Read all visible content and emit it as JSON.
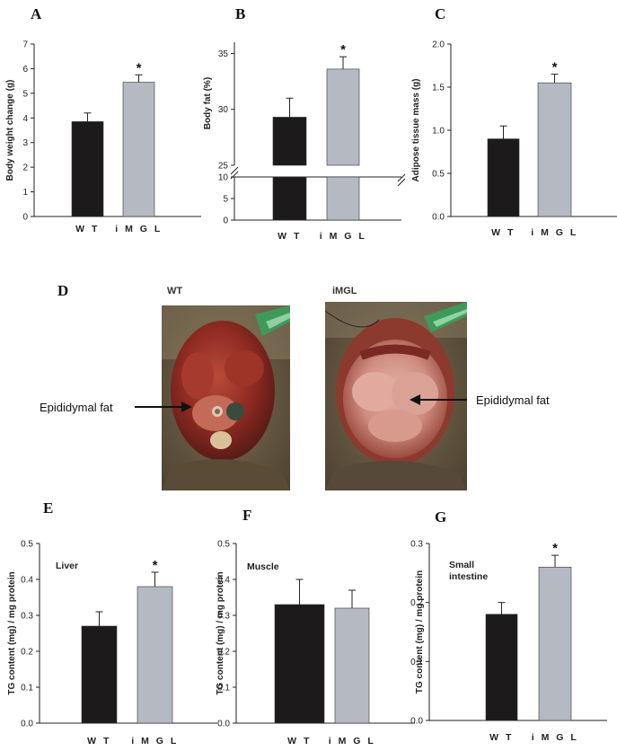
{
  "panels": {
    "A": "A",
    "B": "B",
    "C": "C",
    "D": "D",
    "E": "E",
    "F": "F",
    "G": "G"
  },
  "photos": {
    "wt_title": "WT",
    "imgl_title": "iMGL",
    "left_callout": "Epididymal fat",
    "right_callout": "Epididymal fat"
  },
  "colors": {
    "wt": "#1c1a1b",
    "imgl": "#b5b9c2"
  },
  "chart_data": [
    {
      "panel": "A",
      "type": "bar",
      "categories": [
        "W T",
        "i M G L"
      ],
      "values": [
        3.85,
        5.45
      ],
      "errors": [
        0.35,
        0.3
      ],
      "significance": [
        "",
        "*"
      ],
      "ylabel": "Body weight change (g)",
      "ylim": [
        0,
        7
      ],
      "yticks": [
        0,
        1,
        2,
        3,
        4,
        5,
        6,
        7
      ],
      "ytick_labels": [
        "0",
        "1",
        "2",
        "3",
        "4",
        "5",
        "6",
        "7"
      ]
    },
    {
      "panel": "B",
      "type": "bar",
      "broken_axis": true,
      "categories": [
        "W T",
        "i M G L"
      ],
      "values": [
        29.3,
        33.6
      ],
      "errors": [
        1.7,
        1.1
      ],
      "significance": [
        "",
        "*"
      ],
      "ylabel": "Body fat (%)",
      "ylim_lower": [
        0,
        10
      ],
      "ylim_upper": [
        25,
        36
      ],
      "yticks_lower": [
        0,
        5,
        10
      ],
      "ytick_labels_lower": [
        "0",
        "5",
        "10"
      ],
      "yticks_upper": [
        25,
        30,
        35
      ],
      "ytick_labels_upper": [
        "25",
        "30",
        "35"
      ]
    },
    {
      "panel": "C",
      "type": "bar",
      "categories": [
        "W T",
        "i M G L"
      ],
      "values": [
        0.9,
        1.55
      ],
      "errors": [
        0.15,
        0.1
      ],
      "significance": [
        "",
        "*"
      ],
      "ylabel": "Adipose tissue mass (g)",
      "ylim": [
        0,
        2.0
      ],
      "yticks": [
        0,
        0.5,
        1.0,
        1.5,
        2.0
      ],
      "ytick_labels": [
        "0.0",
        "0.5",
        "1.0",
        "1.5",
        "2.0"
      ]
    },
    {
      "panel": "E",
      "type": "bar",
      "annotation": "Liver",
      "categories": [
        "W T",
        "i M G L"
      ],
      "values": [
        0.27,
        0.38
      ],
      "errors": [
        0.04,
        0.04
      ],
      "significance": [
        "",
        "*"
      ],
      "ylabel": "TG  content (mg) / mg protein",
      "ylim": [
        0,
        0.5
      ],
      "yticks": [
        0,
        0.1,
        0.2,
        0.3,
        0.4,
        0.5
      ],
      "ytick_labels": [
        "0.0",
        "0.1",
        "0.2",
        "0.3",
        "0.4",
        "0.5"
      ]
    },
    {
      "panel": "F",
      "type": "bar",
      "annotation": "Muscle",
      "categories": [
        "W T",
        "i M G L"
      ],
      "values": [
        0.33,
        0.32
      ],
      "errors": [
        0.07,
        0.05
      ],
      "significance": [
        "",
        ""
      ],
      "ylabel": "TG content (mg) / mg protein",
      "ylim": [
        0,
        0.5
      ],
      "yticks": [
        0,
        0.1,
        0.2,
        0.3,
        0.4,
        0.5
      ],
      "ytick_labels": [
        "0.0",
        "0.1",
        "0.2",
        "0.3",
        "0.4",
        "0.5"
      ]
    },
    {
      "panel": "G",
      "type": "bar",
      "annotation": "Small intestine",
      "categories": [
        "W T",
        "i M G L"
      ],
      "values": [
        0.18,
        0.26
      ],
      "errors": [
        0.02,
        0.02
      ],
      "significance": [
        "",
        "*"
      ],
      "ylabel": "TG content (mg) / mg protein",
      "ylim": [
        0,
        0.3
      ],
      "yticks": [
        0,
        0.1,
        0.2,
        0.3
      ],
      "ytick_labels": [
        "0.0",
        "0.1",
        "0.2",
        "0.3"
      ]
    }
  ]
}
